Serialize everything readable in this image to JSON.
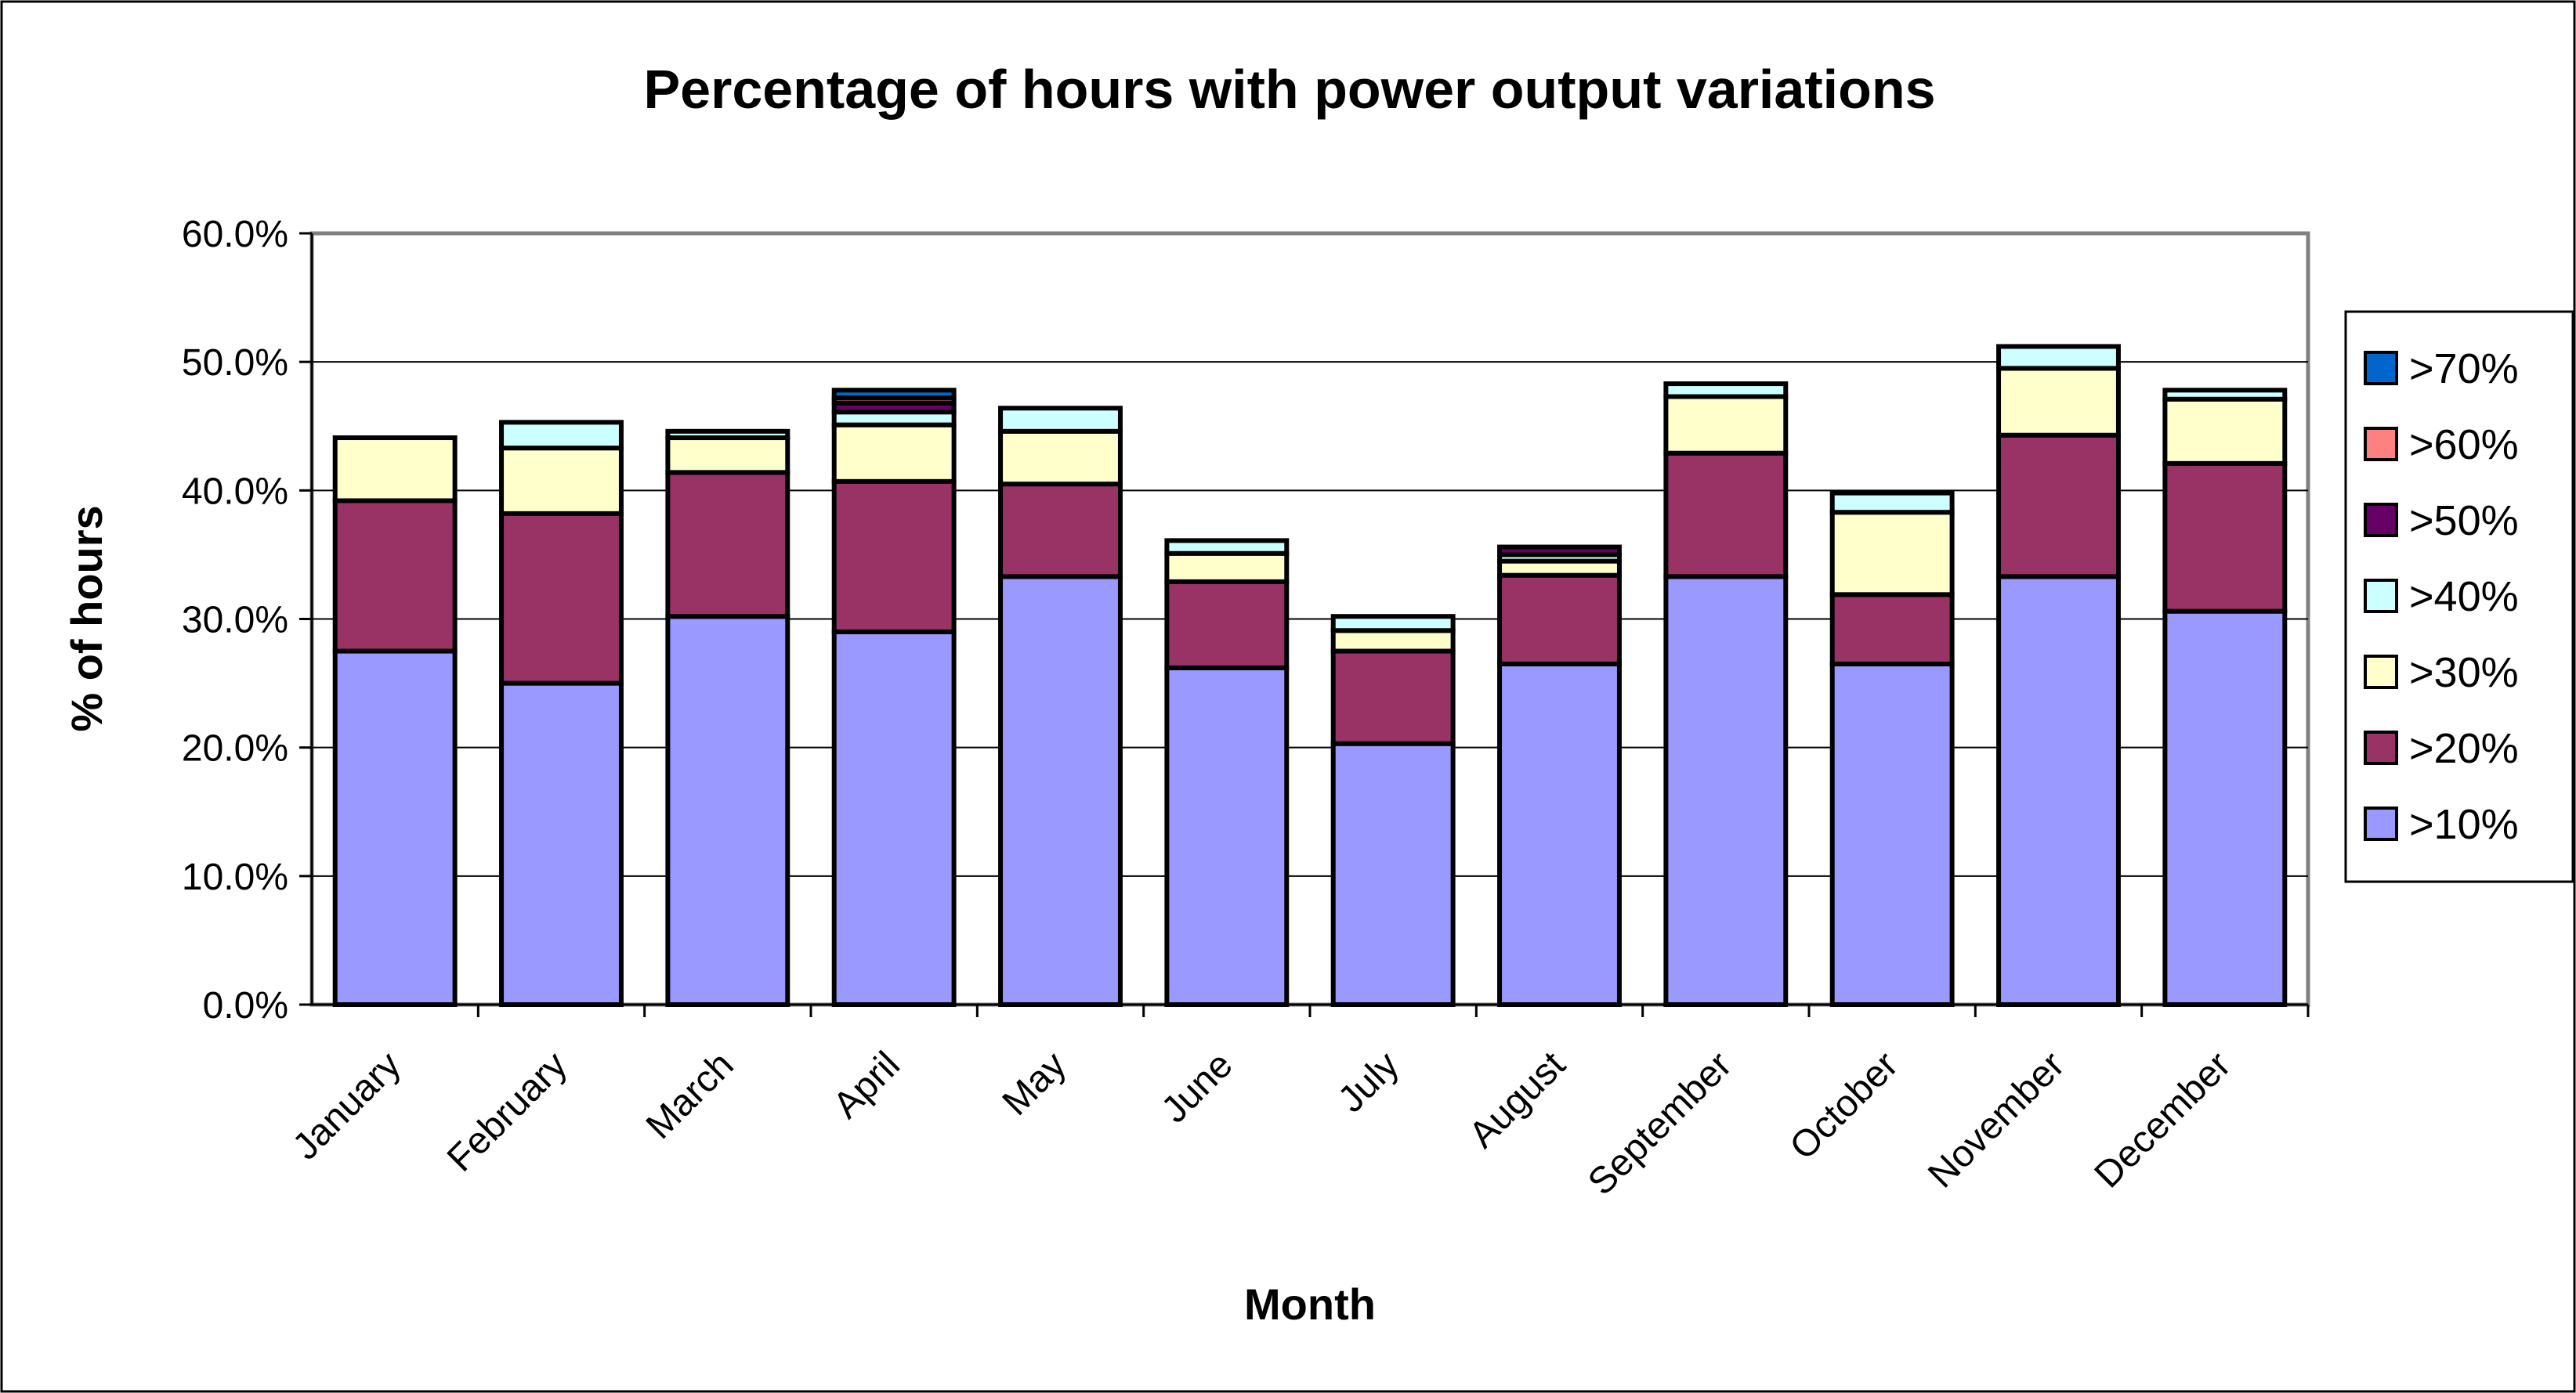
{
  "chart_data": {
    "type": "bar",
    "stacked": true,
    "title": "Percentage of hours with power output variations",
    "xlabel": "Month",
    "ylabel": "% of hours",
    "ylim": [
      0,
      60
    ],
    "yticks": [
      "0.0%",
      "10.0%",
      "20.0%",
      "30.0%",
      "40.0%",
      "50.0%",
      "60.0%"
    ],
    "grid": true,
    "legend_position": "right",
    "categories": [
      "January",
      "February",
      "March",
      "April",
      "May",
      "June",
      "July",
      "August",
      "September",
      "October",
      "November",
      "December"
    ],
    "series": [
      {
        "name": ">10%",
        "color": "#9999FF",
        "values": [
          27.5,
          25.0,
          30.2,
          29.0,
          33.3,
          26.2,
          20.3,
          26.5,
          33.3,
          26.5,
          33.3,
          30.6
        ]
      },
      {
        "name": ">20%",
        "color": "#993366",
        "values": [
          11.7,
          13.2,
          11.2,
          11.7,
          7.2,
          6.7,
          7.2,
          6.9,
          9.6,
          5.4,
          11.0,
          11.5
        ]
      },
      {
        "name": ">30%",
        "color": "#FFFFCC",
        "values": [
          4.9,
          5.1,
          2.7,
          4.4,
          4.1,
          2.2,
          1.6,
          1.1,
          4.4,
          6.4,
          5.2,
          5.0
        ]
      },
      {
        "name": ">40%",
        "color": "#CCFFFF",
        "values": [
          0,
          2.0,
          0.5,
          1.0,
          1.8,
          1.0,
          1.1,
          0.5,
          1.0,
          1.5,
          1.7,
          0.7
        ]
      },
      {
        "name": ">50%",
        "color": "#660066",
        "values": [
          0,
          0,
          0,
          0.7,
          0,
          0,
          0,
          0.6,
          0,
          0,
          0,
          0
        ]
      },
      {
        "name": ">60%",
        "color": "#FF8080",
        "values": [
          0,
          0,
          0,
          0.4,
          0,
          0,
          0,
          0,
          0,
          0,
          0,
          0
        ]
      },
      {
        "name": ">70%",
        "color": "#0066CC",
        "values": [
          0,
          0,
          0,
          0.6,
          0,
          0,
          0,
          0,
          0,
          0,
          0,
          0
        ]
      }
    ]
  }
}
